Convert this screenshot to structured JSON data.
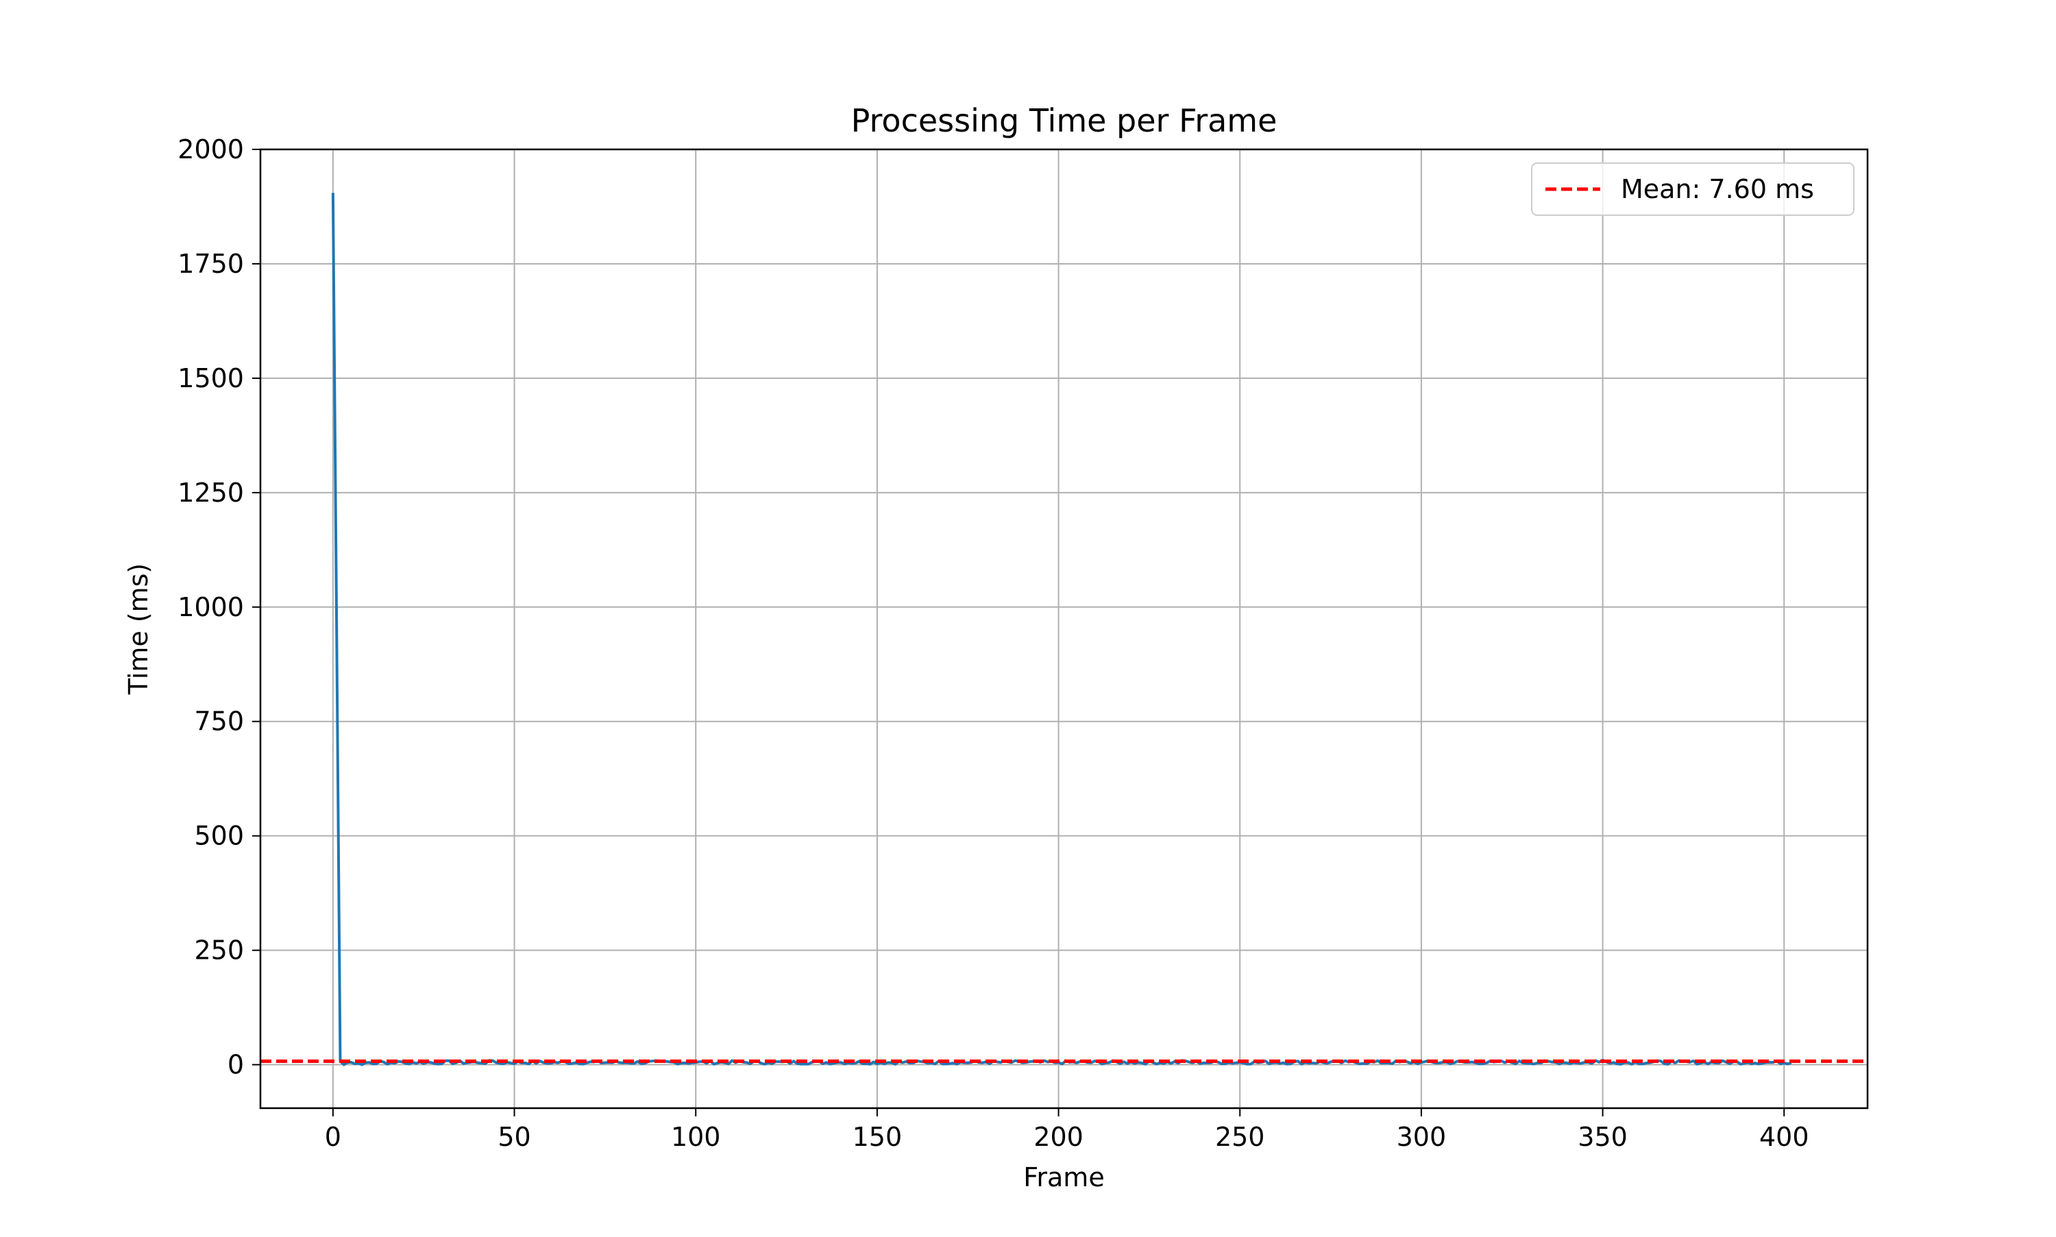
{
  "chart_data": {
    "type": "line",
    "title": "Processing Time per Frame",
    "xlabel": "Frame",
    "ylabel": "Time (ms)",
    "xlim": [
      -20,
      423
    ],
    "ylim": [
      -95,
      2000
    ],
    "xticks": [
      0,
      50,
      100,
      150,
      200,
      250,
      300,
      350,
      400
    ],
    "yticks": [
      0,
      250,
      500,
      750,
      1000,
      1250,
      1500,
      1750,
      2000
    ],
    "grid": true,
    "legend_position": "top-right",
    "series": [
      {
        "color": "#1f77b4",
        "description_points": [
          [
            0,
            1905
          ],
          [
            1,
            960
          ],
          [
            2,
            8
          ],
          [
            3,
            0
          ],
          [
            8,
            0
          ],
          [
            12,
            2
          ],
          [
            15,
            1
          ],
          [
            20,
            3
          ],
          [
            30,
            2
          ],
          [
            40,
            4
          ],
          [
            43,
            9
          ],
          [
            47,
            2
          ],
          [
            60,
            3
          ],
          [
            80,
            4
          ],
          [
            100,
            5
          ],
          [
            120,
            4
          ],
          [
            140,
            5
          ],
          [
            160,
            4
          ],
          [
            180,
            6
          ],
          [
            200,
            5
          ],
          [
            220,
            6
          ],
          [
            234,
            9
          ],
          [
            240,
            4
          ],
          [
            260,
            5
          ],
          [
            280,
            6
          ],
          [
            300,
            5
          ],
          [
            320,
            6
          ],
          [
            340,
            4
          ],
          [
            348,
            9
          ],
          [
            350,
            10
          ],
          [
            352,
            3
          ],
          [
            370,
            4
          ],
          [
            390,
            5
          ],
          [
            402,
            4
          ]
        ],
        "x_range": [
          0,
          402
        ],
        "baseline_ms": 5
      }
    ],
    "reference_lines": [
      {
        "axis": "y",
        "value": 7.6,
        "color": "#ff0000",
        "style": "dashed",
        "label": "Mean: 7.60 ms"
      }
    ],
    "legend": [
      {
        "label": "Mean: 7.60 ms",
        "color": "#ff0000",
        "style": "dashed"
      }
    ]
  }
}
